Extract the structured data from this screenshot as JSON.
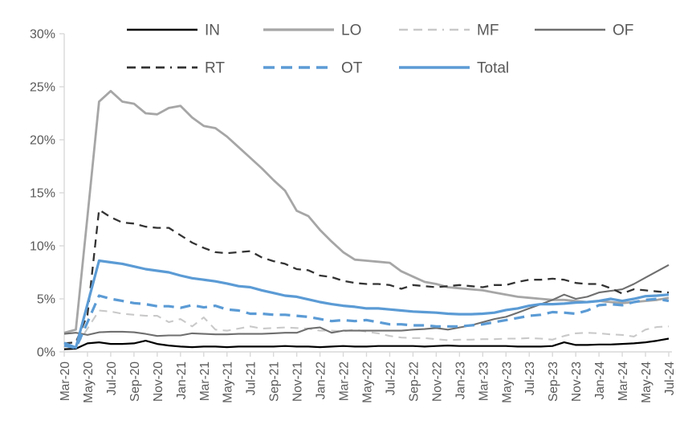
{
  "chart_data": {
    "type": "line",
    "title": "",
    "xlabel": "",
    "ylabel": "",
    "ylim": [
      0,
      30
    ],
    "y_tick_labels": [
      "0%",
      "5%",
      "10%",
      "15%",
      "20%",
      "25%",
      "30%"
    ],
    "grid": false,
    "legend_position": "top",
    "legend_rows": [
      [
        "IN",
        "LO",
        "MF",
        "OF"
      ],
      [
        "RT",
        "OT",
        "Total"
      ]
    ],
    "x": [
      "Mar-20",
      "Apr-20",
      "May-20",
      "Jun-20",
      "Jul-20",
      "Aug-20",
      "Sep-20",
      "Oct-20",
      "Nov-20",
      "Dec-20",
      "Jan-21",
      "Feb-21",
      "Mar-21",
      "Apr-21",
      "May-21",
      "Jun-21",
      "Jul-21",
      "Aug-21",
      "Sep-21",
      "Oct-21",
      "Nov-21",
      "Dec-21",
      "Jan-22",
      "Feb-22",
      "Mar-22",
      "Apr-22",
      "May-22",
      "Jun-22",
      "Jul-22",
      "Aug-22",
      "Sep-22",
      "Oct-22",
      "Nov-22",
      "Dec-22",
      "Jan-23",
      "Feb-23",
      "Mar-23",
      "Apr-23",
      "May-23",
      "Jun-23",
      "Jul-23",
      "Aug-23",
      "Sep-23",
      "Oct-23",
      "Nov-23",
      "Dec-23",
      "Jan-24",
      "Feb-24",
      "Mar-24",
      "Apr-24",
      "May-24",
      "Jun-24",
      "Jul-24"
    ],
    "x_labels_shown_every": 2,
    "series": [
      {
        "name": "IN",
        "color": "#000000",
        "style": "solid",
        "width": 2.2,
        "values": [
          0.25,
          0.3,
          0.8,
          0.9,
          0.75,
          0.75,
          0.8,
          1.05,
          0.75,
          0.6,
          0.5,
          0.45,
          0.5,
          0.5,
          0.45,
          0.5,
          0.5,
          0.5,
          0.5,
          0.55,
          0.5,
          0.5,
          0.45,
          0.5,
          0.55,
          0.5,
          0.5,
          0.55,
          0.55,
          0.55,
          0.55,
          0.5,
          0.55,
          0.6,
          0.55,
          0.55,
          0.55,
          0.55,
          0.55,
          0.5,
          0.5,
          0.5,
          0.55,
          0.9,
          0.65,
          0.65,
          0.7,
          0.7,
          0.75,
          0.8,
          0.9,
          1.05,
          1.25
        ]
      },
      {
        "name": "LO",
        "color": "#a6a6a6",
        "style": "solid",
        "width": 2.8,
        "values": [
          1.8,
          2.1,
          12.8,
          23.6,
          24.6,
          23.6,
          23.4,
          22.5,
          22.4,
          23.0,
          23.2,
          22.1,
          21.3,
          21.1,
          20.3,
          19.3,
          18.3,
          17.3,
          16.2,
          15.2,
          13.3,
          12.8,
          11.5,
          10.4,
          9.4,
          8.7,
          8.6,
          8.5,
          8.4,
          7.6,
          7.1,
          6.6,
          6.4,
          6.1,
          6.0,
          5.9,
          5.8,
          5.6,
          5.4,
          5.2,
          5.1,
          5.0,
          4.9,
          4.9,
          4.8,
          4.7,
          4.8,
          4.7,
          4.6,
          4.7,
          4.8,
          4.9,
          5.1
        ]
      },
      {
        "name": "MF",
        "color": "#c9c9c9",
        "style": "dashed",
        "width": 2.1,
        "values": [
          0.5,
          0.5,
          2.2,
          3.9,
          3.8,
          3.6,
          3.5,
          3.4,
          3.4,
          2.8,
          3.1,
          2.4,
          3.25,
          2.1,
          2.0,
          2.2,
          2.4,
          2.2,
          2.25,
          2.3,
          2.25,
          2.2,
          2.0,
          2.0,
          1.95,
          2.1,
          1.9,
          1.75,
          1.5,
          1.35,
          1.3,
          1.3,
          1.2,
          1.1,
          1.15,
          1.15,
          1.2,
          1.2,
          1.25,
          1.25,
          1.3,
          1.25,
          1.15,
          1.5,
          1.75,
          1.8,
          1.75,
          1.65,
          1.6,
          1.45,
          2.1,
          2.35,
          2.4
        ]
      },
      {
        "name": "OF",
        "color": "#6f6f6f",
        "style": "solid",
        "width": 2.1,
        "values": [
          1.7,
          1.8,
          1.6,
          1.85,
          1.9,
          1.9,
          1.85,
          1.7,
          1.5,
          1.55,
          1.55,
          1.75,
          1.7,
          1.65,
          1.65,
          1.7,
          1.7,
          1.7,
          1.75,
          1.8,
          1.8,
          2.2,
          2.3,
          1.8,
          2.0,
          2.0,
          2.0,
          2.0,
          2.0,
          2.0,
          2.1,
          2.15,
          2.25,
          2.1,
          2.3,
          2.5,
          2.8,
          3.1,
          3.3,
          3.7,
          4.1,
          4.5,
          4.9,
          5.4,
          5.0,
          5.2,
          5.6,
          5.75,
          5.9,
          6.4,
          7.0,
          7.6,
          8.2
        ]
      },
      {
        "name": "RT",
        "color": "#333333",
        "style": "dashed",
        "width": 2.3,
        "values": [
          0.8,
          0.9,
          3.5,
          13.4,
          12.7,
          12.2,
          12.1,
          11.8,
          11.7,
          11.7,
          11.0,
          10.3,
          9.8,
          9.4,
          9.3,
          9.4,
          9.5,
          8.9,
          8.55,
          8.3,
          7.8,
          7.7,
          7.2,
          7.05,
          6.7,
          6.5,
          6.4,
          6.4,
          6.3,
          5.95,
          6.3,
          6.2,
          6.1,
          6.2,
          6.3,
          6.2,
          6.1,
          6.3,
          6.3,
          6.6,
          6.8,
          6.8,
          6.9,
          6.8,
          6.5,
          6.4,
          6.4,
          6.0,
          5.5,
          5.9,
          5.8,
          5.7,
          5.6
        ]
      },
      {
        "name": "OT",
        "color": "#5b9bd5",
        "style": "dashed",
        "width": 3.2,
        "values": [
          0.6,
          0.35,
          2.8,
          5.3,
          5.0,
          4.8,
          4.6,
          4.5,
          4.3,
          4.3,
          4.15,
          4.4,
          4.2,
          4.35,
          4.0,
          3.9,
          3.6,
          3.6,
          3.5,
          3.5,
          3.4,
          3.3,
          3.1,
          2.9,
          3.0,
          2.9,
          3.0,
          2.8,
          2.6,
          2.6,
          2.5,
          2.5,
          2.4,
          2.4,
          2.4,
          2.5,
          2.6,
          2.8,
          3.0,
          3.2,
          3.4,
          3.5,
          3.75,
          3.7,
          3.6,
          3.9,
          4.4,
          4.5,
          4.4,
          4.7,
          4.9,
          5.0,
          4.8
        ]
      },
      {
        "name": "Total",
        "color": "#5b9bd5",
        "style": "solid",
        "width": 3.2,
        "values": [
          0.85,
          0.4,
          4.5,
          8.6,
          8.45,
          8.3,
          8.05,
          7.8,
          7.65,
          7.5,
          7.2,
          6.95,
          6.8,
          6.65,
          6.45,
          6.2,
          6.1,
          5.8,
          5.55,
          5.3,
          5.2,
          4.95,
          4.7,
          4.5,
          4.35,
          4.25,
          4.1,
          4.1,
          4.0,
          3.9,
          3.8,
          3.75,
          3.7,
          3.6,
          3.55,
          3.55,
          3.6,
          3.7,
          3.95,
          4.1,
          4.35,
          4.5,
          4.5,
          4.55,
          4.65,
          4.7,
          4.8,
          5.0,
          4.8,
          5.0,
          5.25,
          5.3,
          5.4
        ]
      }
    ],
    "axis_color": "#d9d9d9",
    "label_color": "#595959"
  }
}
